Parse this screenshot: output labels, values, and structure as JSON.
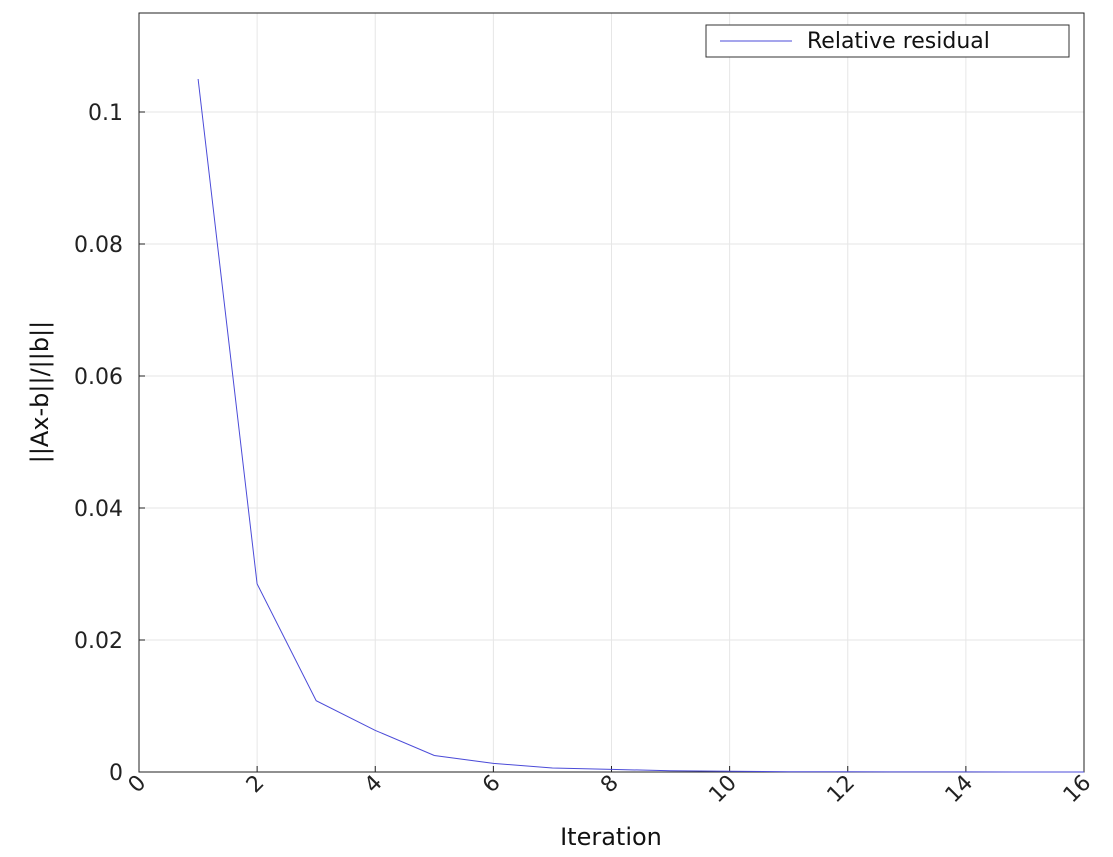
{
  "chart_data": {
    "type": "line",
    "title": "",
    "xlabel": "Iteration",
    "ylabel": "||Ax-b||/||b||",
    "xlim": [
      0,
      16
    ],
    "ylim": [
      0,
      0.115
    ],
    "x_ticks": [
      0,
      2,
      4,
      6,
      8,
      10,
      12,
      14,
      16
    ],
    "x_tick_labels": [
      "0",
      "2",
      "4",
      "6",
      "8",
      "10",
      "12",
      "14",
      "16"
    ],
    "y_ticks": [
      0,
      0.02,
      0.04,
      0.06,
      0.08,
      0.1
    ],
    "y_tick_labels": [
      "0",
      "0.02",
      "0.04",
      "0.06",
      "0.08",
      "0.1"
    ],
    "grid": true,
    "legend_position": "top-right",
    "series": [
      {
        "name": "Relative residual",
        "color": "#4b4bd8",
        "x": [
          1,
          2,
          3,
          4,
          5,
          6,
          7,
          8,
          9,
          10,
          11,
          12,
          13,
          14,
          15,
          16
        ],
        "y": [
          0.105,
          0.0285,
          0.0108,
          0.0063,
          0.0025,
          0.0013,
          0.0006,
          0.0004,
          0.0002,
          0.0001,
          5e-05,
          3e-05,
          2e-05,
          1e-05,
          5e-06,
          3e-06
        ]
      }
    ]
  }
}
